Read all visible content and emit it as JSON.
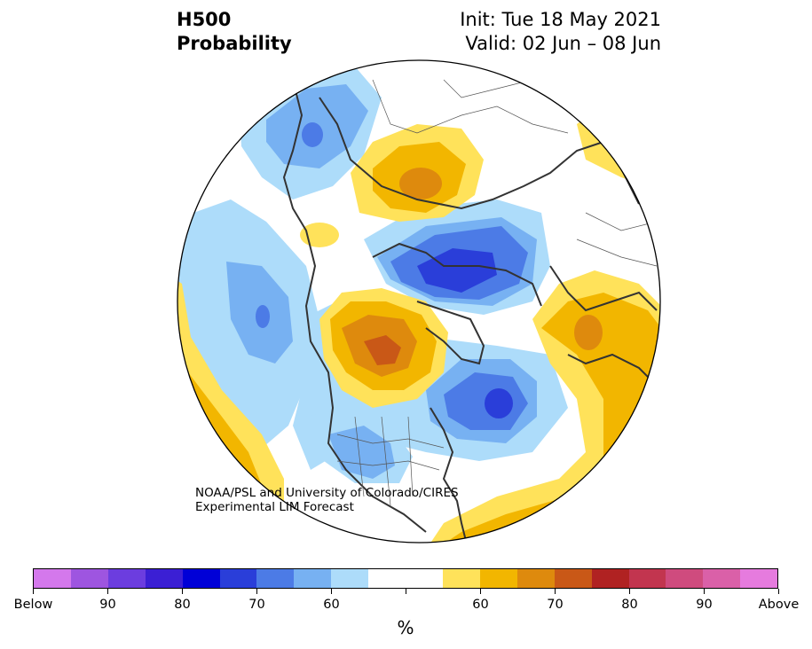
{
  "header": {
    "title_line1": "H500",
    "title_line2": "Probability",
    "init_text": "Init: Tue 18 May 2021",
    "valid_text": "Valid: 02 Jun – 08 Jun"
  },
  "credit": {
    "line1": "NOAA/PSL and University of Colorado/CIRES",
    "line2": "Experimental LIM Forecast"
  },
  "colorbar": {
    "units": "%",
    "colors": [
      "#d478ec",
      "#9e55e0",
      "#6c3ddf",
      "#3b1fd4",
      "#0000d7",
      "#2a3ed9",
      "#4c7be6",
      "#77b1f2",
      "#addcfa",
      "#ffffff",
      "#ffffff",
      "#ffe25a",
      "#f2b600",
      "#de8a0d",
      "#c95817",
      "#b02222",
      "#c2354f",
      "#cf4b7e",
      "#da60a8",
      "#e67bde"
    ],
    "tick_labels": [
      "Below",
      "90",
      "80",
      "70",
      "60",
      "",
      "60",
      "70",
      "80",
      "90",
      "Above"
    ]
  },
  "palette": {
    "blue_light": "#addcfa",
    "blue_mid": "#77b1f2",
    "blue_dark": "#4c7be6",
    "blue_deep": "#2a3ed9",
    "yellow": "#ffe25a",
    "gold": "#f2b600",
    "orange": "#de8a0d",
    "burnt": "#c95817",
    "coast": "#333333"
  }
}
